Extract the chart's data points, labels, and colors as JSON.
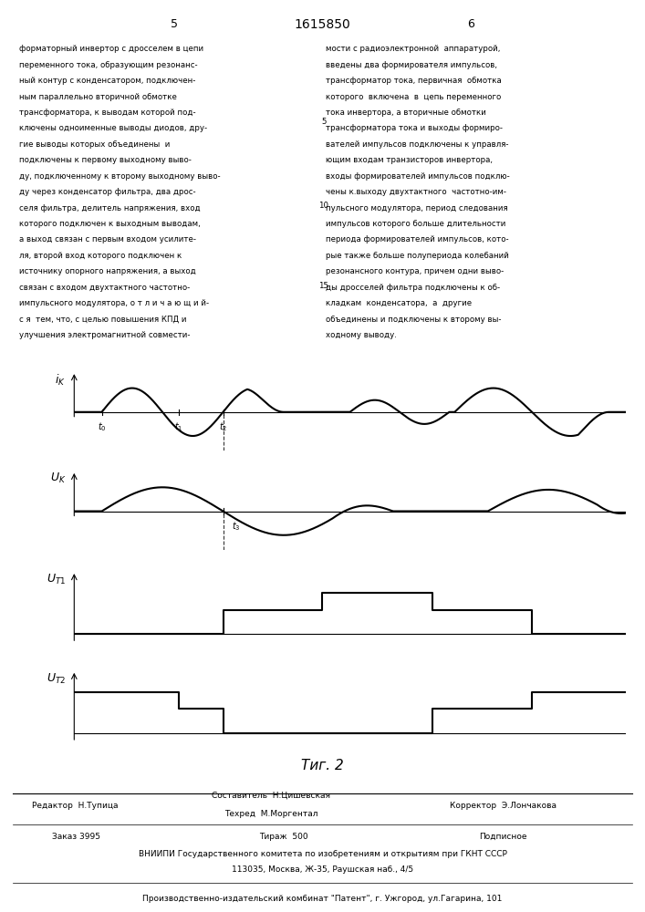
{
  "fig_width": 7.07,
  "fig_height": 10.0,
  "bg_color": "#ffffff",
  "title": "1615850",
  "page_left": "5",
  "page_right": "6",
  "left_text_lines": [
    "форматорный инвертор с дросселем в цепи",
    "переменного тока, образующим резонанс-",
    "ный контур с конденсатором, подключен-",
    "ным параллельно вторичной обмотке",
    "трансформатора, к выводам которой под-",
    "ключены одноименные выводы диодов, дру-",
    "гие выводы которых объединены  и",
    "подключены к первому выходному выво-",
    "ду, подключенному к второму выходному выво-",
    "ду через конденсатор фильтра, два дрос-",
    "селя фильтра, делитель напряжения, вход",
    "которого подключен к выходным выводам,",
    "а выход связан с первым входом усилите-",
    "ля, второй вход которого подключен к",
    "источнику опорного напряжения, а выход",
    "связан с входом двухтактного частотно-",
    "импульсного модулятора, о т л и ч а ю щ и й-",
    "с я  тем, что, с целью повышения КПД и",
    "улучшения электромагнитной совмести-"
  ],
  "right_text_lines": [
    "мости с радиоэлектронной  аппаратурой,",
    "введены два формирователя импульсов,",
    "трансформатор тока, первичная  обмотка",
    "которого  включена  в  цепь переменного",
    "тока инвертора, а вторичные обмотки",
    "трансформатора тока и выходы формиро-",
    "вателей импульсов подключены к управля-",
    "ющим входам транзисторов инвертора,",
    "входы формирователей импульсов подклю-",
    "чены к.выходу двухтактного  частотно-им-",
    "пульсного модулятора, период следования",
    "импульсов которого больше длительности",
    "периода формирователей импульсов, кото-",
    "рые также больше полупериода колебаний",
    "резонансного контура, причем одни выво-",
    "ды дросселей фильтра подключены к об-",
    "кладкам  конденсатора,  а  другие",
    "объединены и подключены к второму вы-",
    "ходному выводу."
  ],
  "line_numbers": [
    [
      5,
      5
    ],
    [
      10,
      10
    ],
    [
      15,
      15
    ]
  ],
  "fig_caption": "Τиг. 2",
  "footer_editor": "Редактор  Н.Тупица",
  "footer_composer": "Составитель  Н.Цишевская",
  "footer_techred": "Техред  М.Моргентал",
  "footer_corrector": "Корректор  Э.Лончакова",
  "footer_order": "Заказ 3995",
  "footer_tirazh": "Тираж  500",
  "footer_podpisnoe": "Подписное",
  "footer_vniiipi": "ВНИИПИ Государственного комитета по изобретениям и открытиям при ГКНТ СССР",
  "footer_address": "113035, Москва, Ж-35, Раушская наб., 4/5",
  "footer_plant": "Производственно-издательский комбинат \"Патент\", г. Ужгород, ул.Гагарина, 101"
}
